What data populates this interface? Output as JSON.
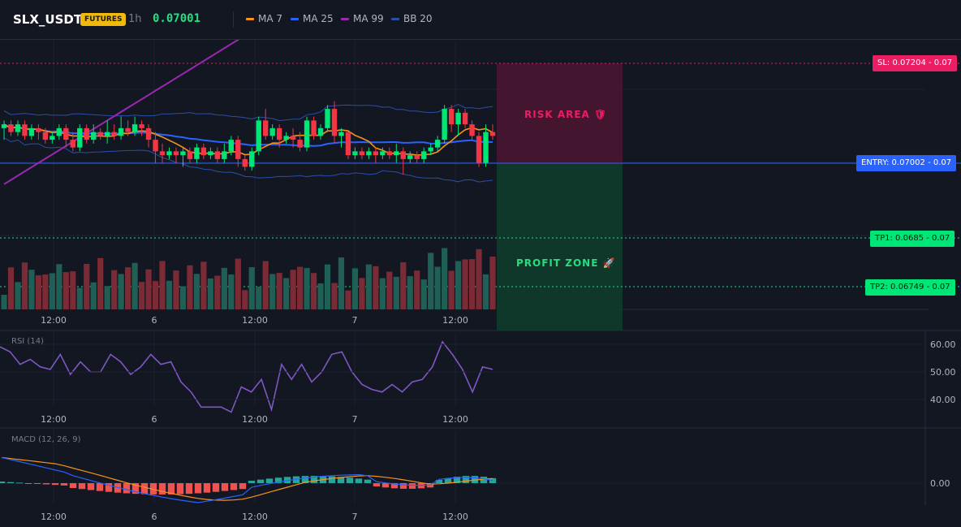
{
  "header": {
    "symbol": "SLX_USDT",
    "badge": "FUTURES",
    "timeframe": "1h",
    "price": "0.07001",
    "legend": [
      {
        "label": "MA 7",
        "color": "#f7931a"
      },
      {
        "label": "MA 25",
        "color": "#2962ff"
      },
      {
        "label": "MA 99",
        "color": "#9c27b0"
      },
      {
        "label": "BB 20",
        "color": "#2a4fa8"
      }
    ]
  },
  "levels": {
    "sl": {
      "label": "SL: 0.07204 - 0.07",
      "color": "#e91e63"
    },
    "entry": {
      "label": "ENTRY: 0.07002 - 0.07",
      "color": "#2962ff"
    },
    "tp1": {
      "label": "TP1: 0.0685 - 0.07",
      "color": "#00e676"
    },
    "tp2": {
      "label": "TP2: 0.06749 - 0.07",
      "color": "#00e676"
    }
  },
  "zones": {
    "risk": {
      "label": "RISK AREA 🛡"
    },
    "profit": {
      "label": "PROFIT ZONE 🚀"
    }
  },
  "time_axis": [
    "12:00",
    "6",
    "12:00",
    "7",
    "12:00"
  ],
  "rsi": {
    "label": "RSI (14)",
    "ticks": [
      "60.00",
      "50.00",
      "40.00"
    ],
    "values": [
      61,
      59,
      54,
      56,
      53,
      52,
      58,
      50,
      55,
      51,
      51,
      58,
      55,
      50,
      53,
      58,
      54,
      55,
      47,
      43,
      37,
      37,
      37,
      35,
      45,
      43,
      48,
      36,
      54,
      48,
      54,
      47,
      51,
      58,
      59,
      51,
      46,
      44,
      43,
      46,
      43,
      47,
      48,
      53,
      63,
      58,
      52,
      43,
      53,
      52
    ]
  },
  "macd": {
    "label": "MACD (12, 26, 9)",
    "ticks": [
      "0.00"
    ]
  },
  "chart_data": {
    "type": "candlestick",
    "ylim": [
      0.0672,
      0.0725
    ],
    "candles": [
      [
        0.0704,
        0.0705,
        0.0701,
        0.0706
      ],
      [
        0.0705,
        0.0703,
        0.0702,
        0.0706
      ],
      [
        0.0703,
        0.0705,
        0.0702,
        0.0706
      ],
      [
        0.0705,
        0.0702,
        0.0701,
        0.0706
      ],
      [
        0.0702,
        0.0704,
        0.0701,
        0.0705
      ],
      [
        0.0704,
        0.0703,
        0.0701,
        0.0705
      ],
      [
        0.0703,
        0.0701,
        0.07,
        0.0704
      ],
      [
        0.0701,
        0.0702,
        0.07,
        0.0703
      ],
      [
        0.0702,
        0.0704,
        0.0701,
        0.0705
      ],
      [
        0.0704,
        0.0701,
        0.0699,
        0.0705
      ],
      [
        0.0701,
        0.0699,
        0.0698,
        0.0703
      ],
      [
        0.0699,
        0.0704,
        0.0698,
        0.0705
      ],
      [
        0.0704,
        0.0701,
        0.07,
        0.0705
      ],
      [
        0.0701,
        0.0703,
        0.07,
        0.0705
      ],
      [
        0.0703,
        0.0702,
        0.0701,
        0.0704
      ],
      [
        0.0702,
        0.0703,
        0.07,
        0.0706
      ],
      [
        0.0703,
        0.0702,
        0.0701,
        0.0705
      ],
      [
        0.0702,
        0.0704,
        0.0701,
        0.0707
      ],
      [
        0.0704,
        0.0703,
        0.0702,
        0.0706
      ],
      [
        0.0703,
        0.0705,
        0.0702,
        0.0707
      ],
      [
        0.0705,
        0.0704,
        0.0702,
        0.0706
      ],
      [
        0.0704,
        0.0701,
        0.0699,
        0.0705
      ],
      [
        0.0701,
        0.0698,
        0.0695,
        0.0703
      ],
      [
        0.0698,
        0.0697,
        0.0695,
        0.07
      ],
      [
        0.0697,
        0.0698,
        0.0696,
        0.0699
      ],
      [
        0.0698,
        0.0697,
        0.0695,
        0.0699
      ],
      [
        0.0697,
        0.0698,
        0.0694,
        0.0699
      ],
      [
        0.0698,
        0.0696,
        0.0695,
        0.0699
      ],
      [
        0.0696,
        0.0699,
        0.0695,
        0.07
      ],
      [
        0.0699,
        0.0697,
        0.0696,
        0.07
      ],
      [
        0.0697,
        0.0698,
        0.0696,
        0.0699
      ],
      [
        0.0698,
        0.0696,
        0.0695,
        0.0699
      ],
      [
        0.0696,
        0.0698,
        0.0695,
        0.07
      ],
      [
        0.0698,
        0.0701,
        0.0697,
        0.0702
      ],
      [
        0.0701,
        0.0696,
        0.0694,
        0.0702
      ],
      [
        0.0696,
        0.0694,
        0.0693,
        0.0697
      ],
      [
        0.0694,
        0.0698,
        0.0693,
        0.0699
      ],
      [
        0.0698,
        0.0706,
        0.0697,
        0.0707
      ],
      [
        0.0706,
        0.0702,
        0.0701,
        0.0709
      ],
      [
        0.0702,
        0.0704,
        0.0701,
        0.0705
      ],
      [
        0.0704,
        0.0701,
        0.0699,
        0.0705
      ],
      [
        0.0701,
        0.0702,
        0.07,
        0.0703
      ],
      [
        0.0702,
        0.0701,
        0.0699,
        0.0704
      ],
      [
        0.0701,
        0.0699,
        0.0698,
        0.0703
      ],
      [
        0.0699,
        0.0706,
        0.0698,
        0.0707
      ],
      [
        0.0706,
        0.0702,
        0.0701,
        0.0707
      ],
      [
        0.0702,
        0.0704,
        0.0701,
        0.0705
      ],
      [
        0.0704,
        0.0709,
        0.0703,
        0.071
      ],
      [
        0.0709,
        0.0702,
        0.07,
        0.0711
      ],
      [
        0.0702,
        0.0703,
        0.0699,
        0.0704
      ],
      [
        0.0703,
        0.0697,
        0.0696,
        0.0703
      ],
      [
        0.0697,
        0.0698,
        0.0696,
        0.0699
      ],
      [
        0.0698,
        0.0697,
        0.0696,
        0.0699
      ],
      [
        0.0697,
        0.0698,
        0.0696,
        0.0699
      ],
      [
        0.0698,
        0.0697,
        0.0695,
        0.0699
      ],
      [
        0.0697,
        0.0698,
        0.0696,
        0.0699
      ],
      [
        0.0698,
        0.0697,
        0.0696,
        0.0699
      ],
      [
        0.0697,
        0.0698,
        0.0695,
        0.07
      ],
      [
        0.0698,
        0.0696,
        0.0692,
        0.0699
      ],
      [
        0.0696,
        0.0697,
        0.0695,
        0.0698
      ],
      [
        0.0697,
        0.0696,
        0.0695,
        0.0698
      ],
      [
        0.0696,
        0.0698,
        0.0695,
        0.0699
      ],
      [
        0.0698,
        0.0699,
        0.0697,
        0.07
      ],
      [
        0.0699,
        0.0701,
        0.0698,
        0.0702
      ],
      [
        0.0701,
        0.0709,
        0.07,
        0.071
      ],
      [
        0.0709,
        0.0705,
        0.0703,
        0.071
      ],
      [
        0.0705,
        0.0708,
        0.0702,
        0.0709
      ],
      [
        0.0708,
        0.0705,
        0.0704,
        0.0709
      ],
      [
        0.0705,
        0.0702,
        0.0701,
        0.0706
      ],
      [
        0.0702,
        0.0695,
        0.0694,
        0.0703
      ],
      [
        0.0695,
        0.0703,
        0.0694,
        0.0705
      ],
      [
        0.0703,
        0.0702,
        0.0701,
        0.0705
      ]
    ]
  }
}
